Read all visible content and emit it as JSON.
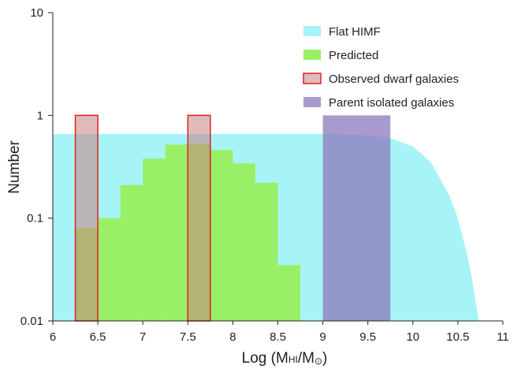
{
  "chart_data": {
    "type": "bar",
    "xlabel": "Log (M",
    "xlabel_sub": "HI",
    "xlabel_mid": "/M",
    "xlabel_sun": "⊙",
    "xlabel_end": ")",
    "ylabel": "Number",
    "xlim": [
      6,
      11
    ],
    "ylim": [
      0.01,
      10
    ],
    "y_scale": "log",
    "x_ticks": [
      6,
      6.5,
      7,
      7.5,
      8,
      8.5,
      9,
      9.5,
      10,
      10.5,
      11
    ],
    "x_tick_labels": [
      "6",
      "6.5",
      "7",
      "7.5",
      "8",
      "8.5",
      "9",
      "9.5",
      "10",
      "10.5",
      "11"
    ],
    "y_ticks": [
      0.01,
      0.1,
      1,
      10
    ],
    "y_tick_labels": [
      "0.01",
      "0.1",
      "1",
      "10"
    ],
    "grid": false,
    "legend_position": "top-right",
    "colors": {
      "flat_himf": "#a6f4f7",
      "predicted": "#99f066",
      "observed_fill": "rgba(200,130,130,0.55)",
      "observed_edge": "#e02020",
      "parent": "rgba(140,120,190,0.75)"
    },
    "series": [
      {
        "name": "Flat HIMF",
        "kind": "area",
        "x": [
          6.0,
          9.0,
          9.5,
          9.75,
          10.0,
          10.2,
          10.4,
          10.5,
          10.6,
          10.65,
          10.7,
          10.73
        ],
        "y": [
          0.66,
          0.66,
          0.64,
          0.6,
          0.5,
          0.35,
          0.17,
          0.1,
          0.045,
          0.028,
          0.015,
          0.01
        ]
      },
      {
        "name": "Predicted",
        "kind": "histogram",
        "bins": [
          [
            6.25,
            6.5
          ],
          [
            6.5,
            6.75
          ],
          [
            6.75,
            7.0
          ],
          [
            7.0,
            7.25
          ],
          [
            7.25,
            7.5
          ],
          [
            7.5,
            7.75
          ],
          [
            7.75,
            8.0
          ],
          [
            8.0,
            8.25
          ],
          [
            8.25,
            8.5
          ],
          [
            8.5,
            8.75
          ]
        ],
        "values": [
          0.08,
          0.1,
          0.21,
          0.38,
          0.52,
          0.53,
          0.46,
          0.34,
          0.22,
          0.035
        ]
      },
      {
        "name": "Observed dwarf galaxies",
        "kind": "histogram",
        "bins": [
          [
            6.25,
            6.5
          ],
          [
            7.5,
            7.75
          ]
        ],
        "values": [
          1,
          1
        ]
      },
      {
        "name": "Parent isolated galaxies",
        "kind": "histogram",
        "bins": [
          [
            9.0,
            9.75
          ]
        ],
        "values": [
          1
        ]
      }
    ]
  }
}
